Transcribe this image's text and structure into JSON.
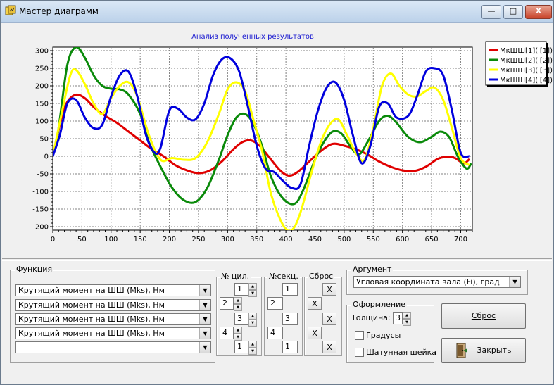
{
  "window": {
    "title": "Мастер диаграмм",
    "minimize": "—",
    "maximize": "□",
    "close": "X"
  },
  "chart_data": {
    "type": "line",
    "title": "Анализ полученных результатов",
    "xlabel": "",
    "ylabel": "",
    "xlim": [
      0,
      720
    ],
    "ylim": [
      -210,
      310
    ],
    "xticks": [
      0,
      50,
      100,
      150,
      200,
      250,
      300,
      350,
      400,
      450,
      500,
      550,
      600,
      650,
      700
    ],
    "yticks": [
      300,
      250,
      200,
      150,
      100,
      50,
      0,
      -50,
      -100,
      -150,
      -200
    ],
    "grid": true,
    "legend_position": "top-right",
    "series": [
      {
        "name": "МкШШ[1](i[1])",
        "color": "#e00000",
        "x": [
          0,
          15,
          25,
          40,
          55,
          70,
          90,
          110,
          130,
          150,
          170,
          190,
          210,
          230,
          250,
          270,
          290,
          310,
          325,
          340,
          355,
          370,
          390,
          405,
          420,
          440,
          460,
          480,
          500,
          520,
          540,
          560,
          580,
          600,
          620,
          640,
          660,
          675,
          690,
          705,
          715
        ],
        "y": [
          0,
          110,
          155,
          175,
          165,
          140,
          115,
          95,
          70,
          45,
          20,
          0,
          -25,
          -40,
          -48,
          -40,
          -15,
          20,
          40,
          45,
          30,
          0,
          -40,
          -55,
          -45,
          -15,
          15,
          35,
          30,
          20,
          5,
          -15,
          -30,
          -40,
          -42,
          -30,
          -8,
          -2,
          -5,
          -20,
          -8
        ]
      },
      {
        "name": "МкШШ[2](i[2])",
        "color": "#0a8a0a",
        "x": [
          0,
          10,
          25,
          40,
          55,
          70,
          85,
          100,
          115,
          130,
          150,
          165,
          185,
          205,
          225,
          245,
          265,
          285,
          300,
          315,
          330,
          345,
          360,
          375,
          395,
          415,
          430,
          450,
          465,
          480,
          495,
          510,
          525,
          540,
          560,
          575,
          590,
          610,
          630,
          650,
          665,
          680,
          695,
          710,
          718
        ],
        "y": [
          0,
          80,
          260,
          310,
          280,
          230,
          200,
          192,
          190,
          175,
          120,
          40,
          -30,
          -90,
          -125,
          -130,
          -90,
          -10,
          60,
          110,
          120,
          90,
          25,
          -60,
          -120,
          -135,
          -95,
          -10,
          40,
          70,
          65,
          30,
          5,
          40,
          100,
          115,
          95,
          55,
          40,
          55,
          70,
          55,
          0,
          -35,
          -20
        ]
      },
      {
        "name": "МкШШ[3](i[3])",
        "color": "#ffff00",
        "x": [
          0,
          15,
          30,
          40,
          55,
          70,
          85,
          100,
          115,
          130,
          145,
          165,
          185,
          205,
          225,
          245,
          265,
          285,
          300,
          315,
          330,
          345,
          360,
          375,
          395,
          410,
          425,
          445,
          460,
          475,
          490,
          505,
          520,
          535,
          550,
          565,
          580,
          595,
          610,
          625,
          640,
          655,
          670,
          685,
          700,
          715
        ],
        "y": [
          0,
          120,
          230,
          245,
          205,
          150,
          120,
          165,
          200,
          210,
          170,
          60,
          -10,
          -5,
          -10,
          -5,
          40,
          120,
          190,
          210,
          185,
          100,
          10,
          -110,
          -195,
          -210,
          -160,
          -40,
          40,
          90,
          105,
          60,
          10,
          -10,
          80,
          200,
          235,
          200,
          175,
          170,
          185,
          195,
          160,
          80,
          -5,
          -25
        ]
      },
      {
        "name": "МкШШ[4](i[4])",
        "color": "#0000dd",
        "x": [
          0,
          12,
          25,
          40,
          55,
          70,
          85,
          100,
          115,
          130,
          145,
          160,
          175,
          185,
          200,
          215,
          230,
          245,
          260,
          275,
          290,
          305,
          320,
          335,
          350,
          365,
          380,
          395,
          410,
          425,
          440,
          455,
          470,
          485,
          500,
          515,
          530,
          545,
          560,
          575,
          590,
          610,
          625,
          640,
          655,
          670,
          685,
          700,
          715
        ],
        "y": [
          0,
          60,
          150,
          160,
          110,
          80,
          90,
          170,
          230,
          240,
          170,
          60,
          10,
          25,
          130,
          135,
          110,
          105,
          150,
          230,
          275,
          278,
          240,
          140,
          30,
          -35,
          -45,
          -70,
          -90,
          -80,
          30,
          130,
          195,
          210,
          160,
          60,
          -20,
          30,
          140,
          150,
          110,
          115,
          170,
          240,
          250,
          230,
          130,
          10,
          0
        ]
      }
    ]
  },
  "function_group": {
    "label": "Функция",
    "combos": [
      "Крутящий момент на ШШ (Mks), Нм",
      "Крутящий момент на ШШ (Mks), Нм",
      "Крутящий момент на ШШ (Mks), Нм",
      "Крутящий момент на ШШ (Mks), Нм",
      ""
    ]
  },
  "cyl_group": {
    "label": "№ цил.",
    "values": [
      "1",
      "2",
      "3",
      "4",
      "1"
    ]
  },
  "sec_group": {
    "label": "№секц.",
    "values": [
      "1",
      "2",
      "3",
      "4",
      "1"
    ]
  },
  "reset_group": {
    "label": "Сброс",
    "btn": "X"
  },
  "argument_group": {
    "label": "Аргумент",
    "value": "Угловая координата вала (Fi), град"
  },
  "style_group": {
    "label": "Оформление",
    "thickness_label": "Толщина:",
    "thickness_value": "3",
    "degrees_label": "Градусы",
    "crank_label": "Шатунная шейка"
  },
  "buttons": {
    "reset": "Сброс",
    "close": "Закрыть"
  }
}
